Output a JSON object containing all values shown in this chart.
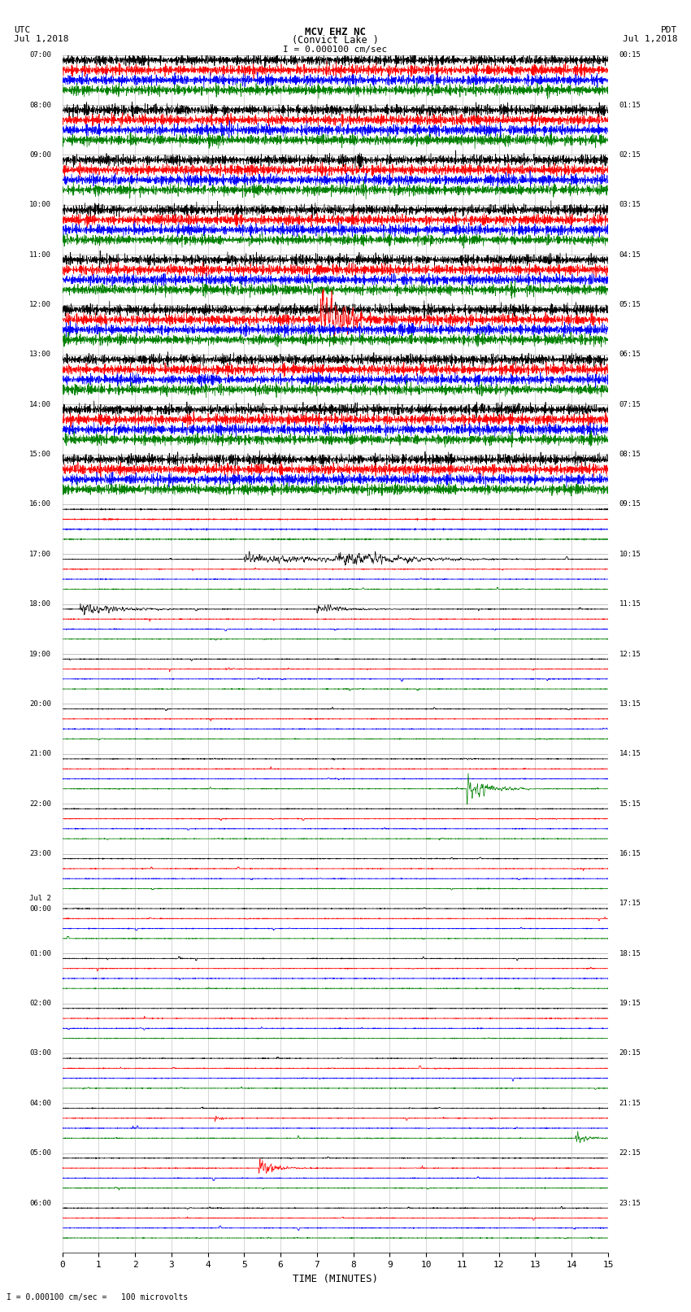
{
  "title_line1": "MCV EHZ NC",
  "title_line2": "(Convict Lake )",
  "scale_label": "I = 0.000100 cm/sec",
  "left_header": "UTC",
  "left_date": "Jul 1,2018",
  "right_header": "PDT",
  "right_date": "Jul 1,2018",
  "bottom_label": "TIME (MINUTES)",
  "footer_label": "= 0.000100 cm/sec =   100 microvolts",
  "utc_labels": [
    "07:00",
    "08:00",
    "09:00",
    "10:00",
    "11:00",
    "12:00",
    "13:00",
    "14:00",
    "15:00",
    "16:00",
    "17:00",
    "18:00",
    "19:00",
    "20:00",
    "21:00",
    "22:00",
    "23:00",
    "Jul 2\n00:00",
    "01:00",
    "02:00",
    "03:00",
    "04:00",
    "05:00",
    "06:00"
  ],
  "pdt_labels": [
    "00:15",
    "01:15",
    "02:15",
    "03:15",
    "04:15",
    "05:15",
    "06:15",
    "07:15",
    "08:15",
    "09:15",
    "10:15",
    "11:15",
    "12:15",
    "13:15",
    "14:15",
    "15:15",
    "16:15",
    "17:15",
    "18:15",
    "19:15",
    "20:15",
    "21:15",
    "22:15",
    "23:15"
  ],
  "xlim": [
    0,
    15
  ],
  "xticks": [
    0,
    1,
    2,
    3,
    4,
    5,
    6,
    7,
    8,
    9,
    10,
    11,
    12,
    13,
    14,
    15
  ],
  "n_rows": 24,
  "trace_colors": [
    "black",
    "red",
    "blue",
    "green"
  ],
  "bg_color": "#ffffff",
  "grid_color": "#999999"
}
